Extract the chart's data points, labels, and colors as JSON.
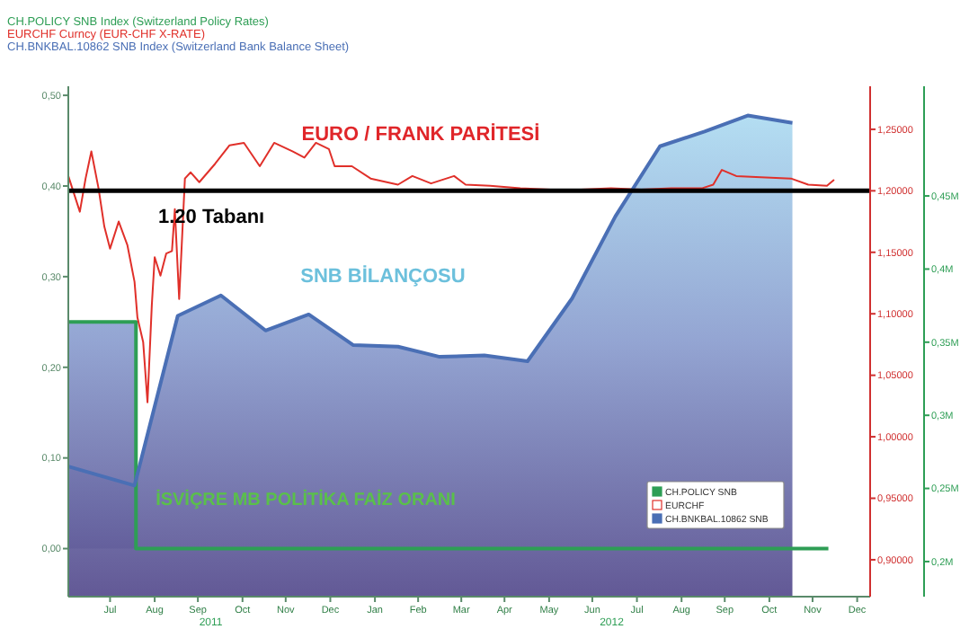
{
  "chart_data": {
    "type": "line",
    "legend": "bottom right",
    "xlim": [
      "2011-06-17",
      "2012-12-25"
    ],
    "xticks": [
      {
        "value": "2011-07-16",
        "label": "Jul"
      },
      {
        "value": "2011-08-16",
        "label": "Aug"
      },
      {
        "value": "2011-09-15",
        "label": "Sep"
      },
      {
        "value": "2011-10-16",
        "label": "Oct"
      },
      {
        "value": "2011-11-15",
        "label": "Nov"
      },
      {
        "value": "2011-12-16",
        "label": "Dec"
      },
      {
        "value": "2012-01-16",
        "label": "Jan"
      },
      {
        "value": "2012-02-15",
        "label": "Feb"
      },
      {
        "value": "2012-03-16",
        "label": "Mar"
      },
      {
        "value": "2012-04-15",
        "label": "Apr"
      },
      {
        "value": "2012-05-16",
        "label": "May"
      },
      {
        "value": "2012-06-15",
        "label": "Jun"
      },
      {
        "value": "2012-07-16",
        "label": "Jul"
      },
      {
        "value": "2012-08-16",
        "label": "Aug"
      },
      {
        "value": "2012-09-15",
        "label": "Sep"
      },
      {
        "value": "2012-10-16",
        "label": "Oct"
      },
      {
        "value": "2012-11-15",
        "label": "Nov"
      },
      {
        "value": "2012-12-16",
        "label": "Dec"
      }
    ],
    "ylim": [
      -0.053,
      0.51
    ],
    "yticks": [
      {
        "value": 0,
        "label": "0,00"
      },
      {
        "value": 0.1,
        "label": "0,10"
      },
      {
        "value": 0.2,
        "label": "0,20"
      },
      {
        "value": 0.3,
        "label": "0,30"
      },
      {
        "value": 0.4,
        "label": "0,40"
      },
      {
        "value": 0.5,
        "label": "0,50"
      }
    ],
    "y2lim": [
      0.87,
      1.285
    ],
    "y2ticks": [
      {
        "value": 0.9,
        "label": "0,90000"
      },
      {
        "value": 0.95,
        "label": "0,95000"
      },
      {
        "value": 1.0,
        "label": "1,00000"
      },
      {
        "value": 1.05,
        "label": "1,05000"
      },
      {
        "value": 1.1,
        "label": "1,10000"
      },
      {
        "value": 1.15,
        "label": "1,15000"
      },
      {
        "value": 1.2,
        "label": "1,20000"
      },
      {
        "value": 1.25,
        "label": "1,25000"
      }
    ],
    "y3lim": [
      0.176,
      0.525
    ],
    "y3ticks": [
      {
        "value": 0.2,
        "label": "0,2M"
      },
      {
        "value": 0.25,
        "label": "0,25M"
      },
      {
        "value": 0.3,
        "label": "0,3M"
      },
      {
        "value": 0.35,
        "label": "0,35M"
      },
      {
        "value": 0.4,
        "label": "0,4M"
      },
      {
        "value": 0.45,
        "label": "0,45M"
      }
    ],
    "ref_lines": [
      {
        "axis": "y2",
        "value": 1.2,
        "label": "1.20 Tabanı",
        "color": "#000000"
      }
    ],
    "annotations": [
      "CH.POLICY SNB Index (Switzerland Policy Rates)",
      "EURCHF Curncy (EUR-CHF X-RATE)",
      "CH.BNKBAL.10862 SNB Index (Switzerland Bank Balance Sheet)",
      "EURO / FRANK PARİTESİ",
      "SNB BİLANÇOSU",
      "İSVİÇRE MB POLİTİKA FAİZ ORANI",
      "2011",
      "2012"
    ],
    "series": [
      {
        "name": "CH.POLICY SNB",
        "type": "area",
        "color": "#2e9e55",
        "x": [
          "2011-06-17",
          "2011-08-03",
          "2011-08-03",
          "2012-11-26"
        ],
        "values": [
          0.25,
          0.25,
          0,
          0
        ]
      },
      {
        "name": "EURCHF",
        "type": "line",
        "axis": "y2",
        "color": "#e0302a",
        "x": [
          "2011-06-17",
          "2011-06-25",
          "2011-06-29",
          "2011-07-03",
          "2011-07-08",
          "2011-07-12",
          "2011-07-16",
          "2011-07-22",
          "2011-07-28",
          "2011-08-02",
          "2011-08-04",
          "2011-08-08",
          "2011-08-11",
          "2011-08-14",
          "2011-08-16",
          "2011-08-20",
          "2011-08-24",
          "2011-08-28",
          "2011-08-30",
          "2011-09-02",
          "2011-09-06",
          "2011-09-10",
          "2011-09-16",
          "2011-09-27",
          "2011-10-07",
          "2011-10-17",
          "2011-10-28",
          "2011-11-07",
          "2011-11-20",
          "2011-11-28",
          "2011-12-06",
          "2011-12-15",
          "2011-12-19",
          "2011-12-31",
          "2012-01-13",
          "2012-02-01",
          "2012-02-11",
          "2012-02-24",
          "2012-03-11",
          "2012-03-19",
          "2012-04-05",
          "2012-04-26",
          "2012-05-17",
          "2012-06-07",
          "2012-06-28",
          "2012-07-19",
          "2012-08-09",
          "2012-08-30",
          "2012-09-07",
          "2012-09-13",
          "2012-09-23",
          "2012-10-10",
          "2012-10-31",
          "2012-11-12",
          "2012-11-25",
          "2012-11-30"
        ],
        "values": [
          1.212,
          1.183,
          1.21,
          1.232,
          1.202,
          1.171,
          1.153,
          1.175,
          1.156,
          1.126,
          1.097,
          1.077,
          1.028,
          1.107,
          1.146,
          1.131,
          1.149,
          1.151,
          1.185,
          1.112,
          1.21,
          1.215,
          1.207,
          1.222,
          1.237,
          1.239,
          1.22,
          1.239,
          1.232,
          1.227,
          1.239,
          1.234,
          1.22,
          1.22,
          1.21,
          1.205,
          1.212,
          1.206,
          1.212,
          1.205,
          1.204,
          1.202,
          1.201,
          1.201,
          1.202,
          1.201,
          1.202,
          1.202,
          1.205,
          1.217,
          1.212,
          1.211,
          1.21,
          1.205,
          1.204,
          1.209
        ]
      },
      {
        "name": "CH.BNKBAL.10862 SNB",
        "type": "area",
        "axis": "y3",
        "color": "#4a6fb5",
        "x": [
          "2011-06-17",
          "2011-08-02",
          "2011-09-01",
          "2011-10-01",
          "2011-11-01",
          "2011-12-01",
          "2012-01-01",
          "2012-02-01",
          "2012-03-01",
          "2012-04-01",
          "2012-05-01",
          "2012-06-01",
          "2012-07-01",
          "2012-08-01",
          "2012-09-01",
          "2012-10-01",
          "2012-11-01"
        ],
        "values": [
          0.265,
          0.252,
          0.368,
          0.382,
          0.358,
          0.369,
          0.348,
          0.347,
          0.34,
          0.341,
          0.337,
          0.38,
          0.436,
          0.484,
          0.494,
          0.505,
          0.5
        ]
      }
    ]
  }
}
